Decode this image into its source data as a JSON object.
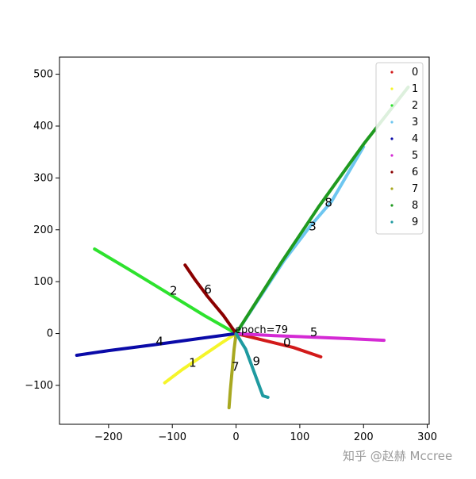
{
  "chart_data": {
    "type": "scatter",
    "title": "",
    "xlabel": "",
    "ylabel": "",
    "xlim": [
      -277,
      303
    ],
    "ylim": [
      -175,
      533
    ],
    "xticks": [
      -200,
      -100,
      0,
      100,
      200,
      300
    ],
    "yticks": [
      -100,
      0,
      100,
      200,
      300,
      400,
      500
    ],
    "x_tick_labels": [
      "−200",
      "−100",
      "0",
      "100",
      "200",
      "300"
    ],
    "y_tick_labels": [
      "−100",
      "0",
      "100",
      "200",
      "300",
      "400",
      "500"
    ],
    "grid": false,
    "legend_position": "top-right",
    "annotation": "epoch=79",
    "series": [
      {
        "name": "0",
        "color": "#d21a1a",
        "points": [
          [
            0,
            0
          ],
          [
            30,
            -9
          ],
          [
            60,
            -18
          ],
          [
            90,
            -27
          ],
          [
            133,
            -45
          ]
        ],
        "label_at": [
          80,
          -18
        ]
      },
      {
        "name": "1",
        "color": "#f5f52a",
        "points": [
          [
            0,
            0
          ],
          [
            -25,
            -20
          ],
          [
            -55,
            -45
          ],
          [
            -85,
            -70
          ],
          [
            -112,
            -95
          ]
        ],
        "label_at": [
          -68,
          -57
        ]
      },
      {
        "name": "2",
        "color": "#2ee22e",
        "points": [
          [
            0,
            0
          ],
          [
            -50,
            35
          ],
          [
            -110,
            80
          ],
          [
            -170,
            125
          ],
          [
            -222,
            163
          ]
        ],
        "label_at": [
          -98,
          82
        ]
      },
      {
        "name": "3",
        "color": "#6ec6f0",
        "points": [
          [
            0,
            0
          ],
          [
            75,
            140
          ],
          [
            115,
            205
          ],
          [
            150,
            255
          ],
          [
            200,
            360
          ]
        ],
        "label_at": [
          120,
          206
        ]
      },
      {
        "name": "4",
        "color": "#0a0aa8",
        "points": [
          [
            0,
            0
          ],
          [
            -60,
            -10
          ],
          [
            -130,
            -22
          ],
          [
            -200,
            -33
          ],
          [
            -250,
            -42
          ]
        ],
        "label_at": [
          -120,
          -16
        ]
      },
      {
        "name": "5",
        "color": "#d42ad4",
        "points": [
          [
            0,
            0
          ],
          [
            60,
            -4
          ],
          [
            120,
            -7
          ],
          [
            180,
            -10
          ],
          [
            232,
            -13
          ]
        ],
        "label_at": [
          122,
          2
        ]
      },
      {
        "name": "6",
        "color": "#8b0000",
        "points": [
          [
            0,
            0
          ],
          [
            -20,
            35
          ],
          [
            -45,
            72
          ],
          [
            -65,
            105
          ],
          [
            -80,
            132
          ]
        ],
        "label_at": [
          -44,
          84
        ]
      },
      {
        "name": "7",
        "color": "#a8a820",
        "points": [
          [
            0,
            0
          ],
          [
            -3,
            -30
          ],
          [
            -6,
            -70
          ],
          [
            -9,
            -110
          ],
          [
            -11,
            -143
          ]
        ],
        "label_at": [
          -1,
          -65
        ]
      },
      {
        "name": "8",
        "color": "#1f9a1f",
        "points": [
          [
            0,
            0
          ],
          [
            70,
            135
          ],
          [
            130,
            245
          ],
          [
            200,
            365
          ],
          [
            270,
            475
          ]
        ],
        "label_at": [
          145,
          252
        ]
      },
      {
        "name": "9",
        "color": "#1f9aa0",
        "points": [
          [
            0,
            0
          ],
          [
            15,
            -30
          ],
          [
            30,
            -80
          ],
          [
            42,
            -120
          ],
          [
            50,
            -123
          ]
        ],
        "label_at": [
          32,
          -54
        ]
      }
    ]
  },
  "watermark": "知乎 @赵赫 Mccree"
}
